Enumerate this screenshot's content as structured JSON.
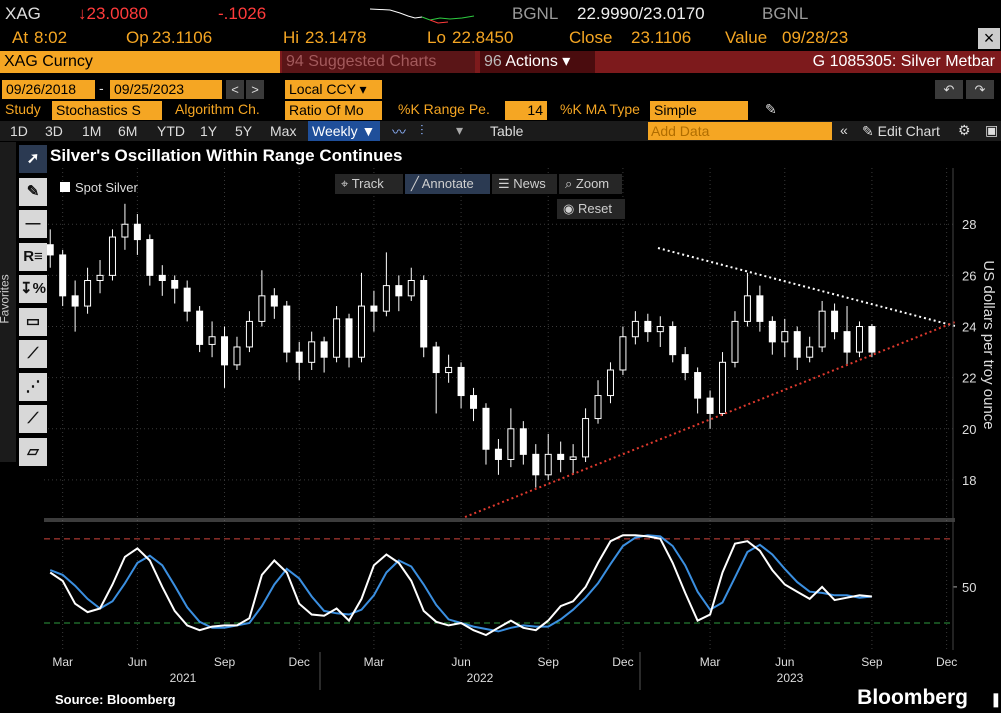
{
  "ui": {
    "ticker": "XAG",
    "last": "↓23.0080",
    "change": "-.1026",
    "source1": "BGNL",
    "bid_ask": "22.9990/23.0170",
    "source2": "BGNL",
    "quote": [
      {
        "label": "At",
        "value": "8:02"
      },
      {
        "label": "Op",
        "value": "23.1106"
      },
      {
        "label": "Hi",
        "value": "23.1478"
      },
      {
        "label": "Lo",
        "value": "22.8450"
      },
      {
        "label": "Close",
        "value": "23.1106"
      },
      {
        "label": "Value",
        "value": "09/28/23"
      }
    ],
    "security": "XAG Curncy",
    "suggested_num": "94",
    "suggested": "Suggested Charts",
    "actions_num": "96",
    "actions": "Actions",
    "chart_id": "G 1085305: Silver Metbar",
    "start_date": "09/26/2018",
    "end_date": "09/25/2023",
    "currency": "Local CCY",
    "study_label": "Study",
    "study": "Stochastics S",
    "param1_label": "Algorithm Ch.",
    "param1": "Ratio Of Mo",
    "param2_label": "%K Range Pe.",
    "param2": "14",
    "param3_label": "%K MA Type",
    "param3": "Simple",
    "periods": [
      "1D",
      "3D",
      "1M",
      "6M",
      "YTD",
      "1Y",
      "5Y",
      "Max"
    ],
    "frequency": "Weekly",
    "table": "Table",
    "add_data": "Add Data",
    "edit_chart": "Edit Chart",
    "tools": [
      "Track",
      "Annotate",
      "News",
      "Zoom"
    ],
    "reset": "Reset",
    "favorites": "Favorites",
    "source": "Source: Bloomberg",
    "brand": "Bloomberg"
  },
  "chart_data": {
    "type": "candlestick",
    "title": "Silver's Oscillation Within Range Continues",
    "y_label": "US dollars per troy ounce",
    "categories": [
      null,
      "Mar",
      null,
      null,
      null,
      null,
      null,
      "Jun",
      null,
      null,
      null,
      null,
      null,
      null,
      "Sep",
      null,
      null,
      null,
      null,
      null,
      "Dec",
      null,
      null,
      null,
      null,
      null,
      "Mar",
      null,
      null,
      null,
      null,
      null,
      null,
      "Jun",
      null,
      null,
      null,
      null,
      null,
      null,
      "Sep",
      null,
      null,
      null,
      null,
      null,
      "Dec",
      null,
      null,
      null,
      null,
      null,
      null,
      "Mar",
      null,
      null,
      null,
      null,
      null,
      "Jun",
      null,
      null,
      null,
      null,
      null,
      null,
      "Sep",
      null,
      null,
      null,
      null,
      null,
      "Dec"
    ],
    "x_groups": [
      "2021",
      "2022",
      "2023"
    ],
    "ylim": [
      16.55,
      30.2
    ],
    "yticks": [
      18,
      20,
      22,
      24,
      26,
      28
    ],
    "grid": true,
    "series": [
      {
        "name": "Spot Silver",
        "up_color": "#000000",
        "down_color": "#ffffff",
        "line_color": "#ffffff",
        "open": [
          27.2,
          26.8,
          25.2,
          24.8,
          25.8,
          26.0,
          27.5,
          28.0,
          27.4,
          26.0,
          25.8,
          25.5,
          24.6,
          23.3,
          23.6,
          22.5,
          23.2,
          24.2,
          25.2,
          24.8,
          23.0,
          22.6,
          23.4,
          22.8,
          24.3,
          22.8,
          24.8,
          24.6,
          25.6,
          25.2,
          25.8,
          23.2,
          22.2,
          22.4,
          21.3,
          20.8,
          19.2,
          18.8,
          20.0,
          19.0,
          18.2,
          19.0,
          18.8,
          18.9,
          20.4,
          21.3,
          22.3,
          23.6,
          24.2,
          23.8,
          24.0,
          22.9,
          22.2,
          21.2,
          20.6,
          22.6,
          24.2,
          25.2,
          24.2,
          23.4,
          23.8,
          22.8,
          23.2,
          24.6,
          23.8,
          23.0,
          24.0,
          null,
          null,
          null,
          null,
          null,
          null
        ],
        "high": [
          27.8,
          27.0,
          25.8,
          26.3,
          26.6,
          27.8,
          28.8,
          28.4,
          27.6,
          26.4,
          26.0,
          25.8,
          24.8,
          24.2,
          24.0,
          23.6,
          24.6,
          26.2,
          25.5,
          25.0,
          23.4,
          23.8,
          23.6,
          24.8,
          24.5,
          26.1,
          25.4,
          26.9,
          26.0,
          26.3,
          26.0,
          23.4,
          22.9,
          22.6,
          21.6,
          21.0,
          19.6,
          20.8,
          20.3,
          19.4,
          19.8,
          19.5,
          19.4,
          20.8,
          21.9,
          22.6,
          24.0,
          24.6,
          24.5,
          24.4,
          24.2,
          23.2,
          22.4,
          21.5,
          23.0,
          24.6,
          26.1,
          25.6,
          24.4,
          24.3,
          24.0,
          23.6,
          25.0,
          24.9,
          24.8,
          24.2,
          24.1,
          null,
          null,
          null,
          null,
          null,
          null
        ],
        "low": [
          26.3,
          24.8,
          23.8,
          24.5,
          25.3,
          25.8,
          27.0,
          26.8,
          25.6,
          25.2,
          24.9,
          24.2,
          23.0,
          22.8,
          21.6,
          22.3,
          23.0,
          24.0,
          24.3,
          22.6,
          21.9,
          22.3,
          22.2,
          22.6,
          22.4,
          22.6,
          23.8,
          24.4,
          24.6,
          25.0,
          22.8,
          20.6,
          21.8,
          20.8,
          20.3,
          18.6,
          18.2,
          18.5,
          18.6,
          17.7,
          18.0,
          18.3,
          18.2,
          18.7,
          20.2,
          21.0,
          22.1,
          23.3,
          23.4,
          23.2,
          22.6,
          21.9,
          20.6,
          20.0,
          20.5,
          22.4,
          24.0,
          23.8,
          22.9,
          22.8,
          22.3,
          22.6,
          23.0,
          23.5,
          22.5,
          22.8,
          22.8,
          null,
          null,
          null,
          null,
          null,
          null
        ],
        "close": [
          26.8,
          25.2,
          24.8,
          25.8,
          26.0,
          27.5,
          28.0,
          27.4,
          26.0,
          25.8,
          25.5,
          24.6,
          23.3,
          23.6,
          22.5,
          23.2,
          24.2,
          25.2,
          24.8,
          23.0,
          22.6,
          23.4,
          22.8,
          24.3,
          22.8,
          24.8,
          24.6,
          25.6,
          25.2,
          25.8,
          23.2,
          22.2,
          22.4,
          21.3,
          20.8,
          19.2,
          18.8,
          20.0,
          19.0,
          18.2,
          19.0,
          18.8,
          18.9,
          20.4,
          21.3,
          22.3,
          23.6,
          24.2,
          23.8,
          24.0,
          22.9,
          22.2,
          21.2,
          20.6,
          22.6,
          24.2,
          25.2,
          24.2,
          23.4,
          23.8,
          22.8,
          23.2,
          24.6,
          23.8,
          23.0,
          24.0,
          23.0,
          null,
          null,
          null,
          null,
          null,
          null
        ]
      }
    ],
    "oscillator": {
      "type": "line",
      "ylim": [
        -2.5,
        104
      ],
      "yticks": [
        50
      ],
      "levels": [
        {
          "value": 90,
          "color": "#d0453c"
        },
        {
          "value": 20,
          "color": "#2e9a3e"
        }
      ],
      "series": [
        {
          "color": "#ffffff",
          "values": [
            62,
            55,
            36,
            29,
            32,
            52,
            75,
            82,
            72,
            50,
            30,
            18,
            14,
            17,
            18,
            18,
            24,
            60,
            72,
            62,
            36,
            27,
            26,
            32,
            22,
            40,
            68,
            77,
            70,
            55,
            30,
            21,
            18,
            20,
            14,
            10,
            16,
            22,
            16,
            14,
            22,
            34,
            38,
            50,
            70,
            88,
            93,
            93,
            92,
            90,
            70,
            45,
            22,
            27,
            62,
            86,
            88,
            80,
            64,
            52,
            46,
            40,
            50,
            39,
            41,
            43,
            42,
            null,
            null,
            null,
            null,
            null,
            null
          ]
        },
        {
          "color": "#3b8fe0",
          "values": [
            64,
            60,
            51,
            40,
            32,
            38,
            53,
            70,
            76,
            68,
            51,
            33,
            21,
            16,
            16,
            18,
            20,
            34,
            52,
            65,
            57,
            42,
            30,
            28,
            27,
            31,
            43,
            62,
            72,
            67,
            52,
            35,
            23,
            20,
            17,
            15,
            13,
            16,
            18,
            17,
            17,
            23,
            31,
            41,
            53,
            69,
            84,
            91,
            93,
            92,
            84,
            68,
            46,
            31,
            37,
            58,
            79,
            85,
            77,
            65,
            54,
            46,
            45,
            43,
            43,
            41,
            42,
            null,
            null,
            null,
            null,
            null,
            null
          ]
        }
      ]
    }
  }
}
